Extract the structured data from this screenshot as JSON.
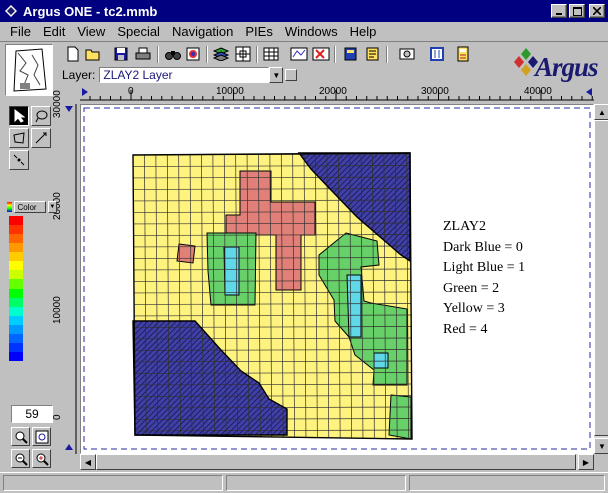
{
  "window": {
    "title": "Argus ONE - tc2.mmb"
  },
  "menu": [
    "File",
    "Edit",
    "View",
    "Special",
    "Navigation",
    "PIEs",
    "Windows",
    "Help"
  ],
  "toolbar": {
    "icons": [
      "new-file-icon",
      "open-file-icon",
      "save-icon",
      "print-icon",
      "find-icon",
      "layer-properties-icon",
      "layers-icon",
      "grid-icon",
      "table-icon",
      "contour-icon",
      "delete-icon",
      "book-icon",
      "book-2-icon",
      "preferences-icon",
      "panel-icon",
      "book-3-icon",
      "calculator-icon"
    ]
  },
  "layer": {
    "label": "Layer:",
    "selected": "ZLAY2 Layer"
  },
  "logo": {
    "text": "Argus"
  },
  "ruler": {
    "x_ticks": [
      "0",
      "10000",
      "20000",
      "30000",
      "40000"
    ],
    "y_ticks": [
      "30000",
      "20000",
      "10000",
      "0"
    ]
  },
  "color_panel": {
    "label": "Color",
    "ramp": [
      "#ff0000",
      "#ff3300",
      "#ff6600",
      "#ff9900",
      "#ffcc00",
      "#ffff00",
      "#ccff00",
      "#66ff00",
      "#00ff00",
      "#00ff66",
      "#00ffcc",
      "#00ccff",
      "#0099ff",
      "#0066ff",
      "#0033ff",
      "#0000ff"
    ]
  },
  "zoom": {
    "value": "59"
  },
  "map": {
    "legend": [
      "ZLAY2",
      "Dark Blue = 0",
      "Light Blue = 1",
      "Green = 2",
      "Yellow = 3",
      "Red = 4"
    ],
    "colors": {
      "dark_blue": "#4040a8",
      "light_blue": "#60d8e8",
      "green": "#68d068",
      "yellow": "#fff380",
      "red": "#e08078",
      "grid_line": "#303030"
    }
  }
}
